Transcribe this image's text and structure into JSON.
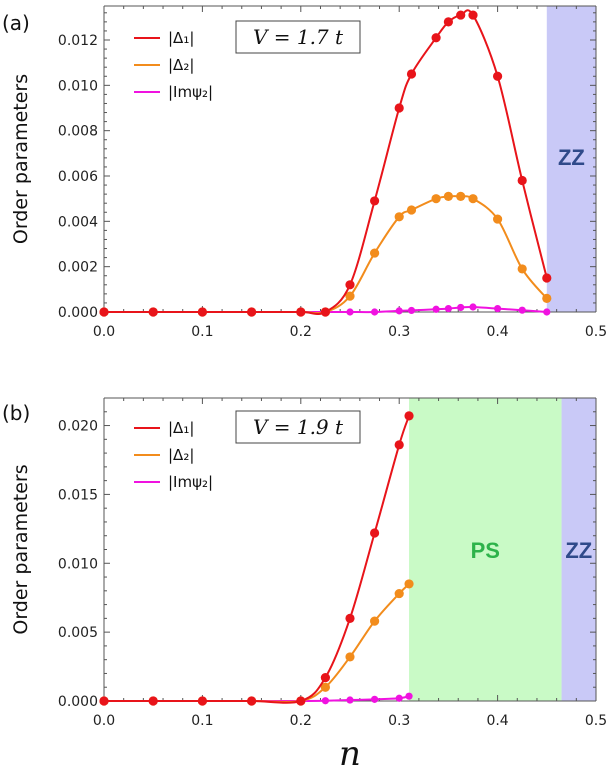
{
  "xlabel": "n",
  "colors": {
    "delta1": "#e8141a",
    "delta2": "#f28c1c",
    "impsi2": "#f012e0",
    "zz_fill": "#c9c9f7",
    "ps_fill": "#c9fac6",
    "zz_text": "#2f4a8a",
    "ps_text": "#2db34a"
  },
  "chart_data": [
    {
      "type": "line",
      "panel_label": "(a)",
      "annotation": "V = 1.7 t",
      "ylabel": "Order parameters",
      "xlim": [
        0.0,
        0.5
      ],
      "ylim": [
        0.0,
        0.0135
      ],
      "xticks": [
        "0.0",
        "0.1",
        "0.2",
        "0.3",
        "0.4",
        "0.5"
      ],
      "xtick_values": [
        0.0,
        0.1,
        0.2,
        0.3,
        0.4,
        0.5
      ],
      "yticks": [
        "0.000",
        "0.002",
        "0.004",
        "0.006",
        "0.008",
        "0.010",
        "0.012"
      ],
      "ytick_values": [
        0.0,
        0.002,
        0.004,
        0.006,
        0.008,
        0.01,
        0.012
      ],
      "legend_position": "top-left",
      "regions": [
        {
          "label": "ZZ",
          "x_start": 0.45,
          "x_end": 0.5,
          "color": "zz"
        }
      ],
      "series": [
        {
          "name": "|Δ₁|",
          "color": "delta1",
          "x": [
            0.0,
            0.05,
            0.1,
            0.15,
            0.2,
            0.225,
            0.25,
            0.275,
            0.3,
            0.3125,
            0.3375,
            0.35,
            0.3625,
            0.375,
            0.4,
            0.425,
            0.45
          ],
          "y": [
            0.0,
            0.0,
            0.0,
            0.0,
            0.0,
            0.0,
            0.0012,
            0.0049,
            0.009,
            0.0105,
            0.0121,
            0.0128,
            0.0131,
            0.0131,
            0.0104,
            0.0058,
            0.0015
          ]
        },
        {
          "name": "|Δ₂|",
          "color": "delta2",
          "x": [
            0.0,
            0.05,
            0.1,
            0.15,
            0.2,
            0.225,
            0.25,
            0.275,
            0.3,
            0.3125,
            0.3375,
            0.35,
            0.3625,
            0.375,
            0.4,
            0.425,
            0.45
          ],
          "y": [
            0.0,
            0.0,
            0.0,
            0.0,
            0.0,
            0.0,
            0.0007,
            0.0026,
            0.0042,
            0.0045,
            0.005,
            0.0051,
            0.0051,
            0.005,
            0.0041,
            0.0019,
            0.0006
          ]
        },
        {
          "name": "|Imψ₂|",
          "color": "impsi2",
          "x": [
            0.0,
            0.05,
            0.1,
            0.15,
            0.2,
            0.225,
            0.25,
            0.275,
            0.3,
            0.3125,
            0.3375,
            0.35,
            0.3625,
            0.375,
            0.4,
            0.425,
            0.45
          ],
          "y": [
            0.0,
            0.0,
            0.0,
            0.0,
            0.0,
            0.0,
            0.0,
            0.0,
            5e-05,
            7e-05,
            0.00012,
            0.00015,
            0.0002,
            0.00022,
            0.00015,
            8e-05,
            0.0
          ]
        }
      ]
    },
    {
      "type": "line",
      "panel_label": "(b)",
      "annotation": "V = 1.9 t",
      "ylabel": "Order parameters",
      "xlim": [
        0.0,
        0.5
      ],
      "ylim": [
        0.0,
        0.022
      ],
      "xticks": [
        "0.0",
        "0.1",
        "0.2",
        "0.3",
        "0.4",
        "0.5"
      ],
      "xtick_values": [
        0.0,
        0.1,
        0.2,
        0.3,
        0.4,
        0.5
      ],
      "yticks": [
        "0.000",
        "0.005",
        "0.010",
        "0.015",
        "0.020"
      ],
      "ytick_values": [
        0.0,
        0.005,
        0.01,
        0.015,
        0.02
      ],
      "legend_position": "top-left",
      "regions": [
        {
          "label": "PS",
          "x_start": 0.31,
          "x_end": 0.465,
          "color": "ps"
        },
        {
          "label": "ZZ",
          "x_start": 0.465,
          "x_end": 0.5,
          "color": "zz"
        }
      ],
      "series": [
        {
          "name": "|Δ₁|",
          "color": "delta1",
          "x": [
            0.0,
            0.05,
            0.1,
            0.15,
            0.2,
            0.225,
            0.25,
            0.275,
            0.3,
            0.31
          ],
          "y": [
            0.0,
            0.0,
            0.0,
            0.0,
            0.0,
            0.0017,
            0.006,
            0.0122,
            0.0186,
            0.0207
          ]
        },
        {
          "name": "|Δ₂|",
          "color": "delta2",
          "x": [
            0.0,
            0.05,
            0.1,
            0.15,
            0.2,
            0.225,
            0.25,
            0.275,
            0.3,
            0.31
          ],
          "y": [
            0.0,
            0.0,
            0.0,
            0.0,
            0.0,
            0.001,
            0.0032,
            0.0058,
            0.0078,
            0.0085
          ]
        },
        {
          "name": "|Imψ₂|",
          "color": "impsi2",
          "x": [
            0.0,
            0.05,
            0.1,
            0.15,
            0.2,
            0.225,
            0.25,
            0.275,
            0.3,
            0.31
          ],
          "y": [
            0.0,
            0.0,
            0.0,
            0.0,
            0.0,
            2e-05,
            7e-05,
            0.00012,
            0.0002,
            0.00035
          ]
        }
      ]
    }
  ]
}
